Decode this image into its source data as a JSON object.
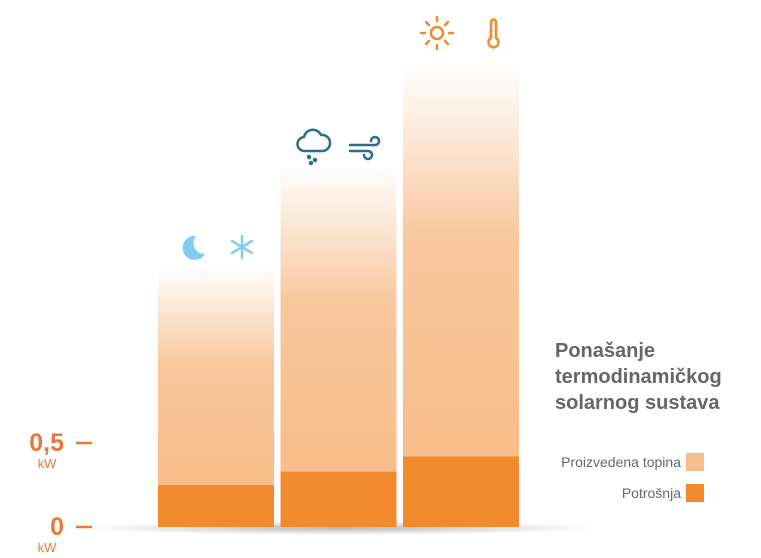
{
  "chart_data": {
    "type": "stacked-bar",
    "title": "Ponašanje termodinamičkog solarnog sustava",
    "categories": [
      null,
      null,
      null
    ],
    "series": [
      {
        "name": "Potrošnja",
        "color": "#f08a2c",
        "values": [
          0.25,
          0.33,
          0.42
        ]
      },
      {
        "name": "Proizvedena topina",
        "color": "#f7bd8a",
        "values": [
          1.3,
          1.82,
          2.33
        ]
      }
    ],
    "ylim": [
      0,
      2.9
    ],
    "yticks": [
      0,
      {
        "value": 0.5,
        "label": "0,5"
      }
    ],
    "unit": "kW"
  }
}
